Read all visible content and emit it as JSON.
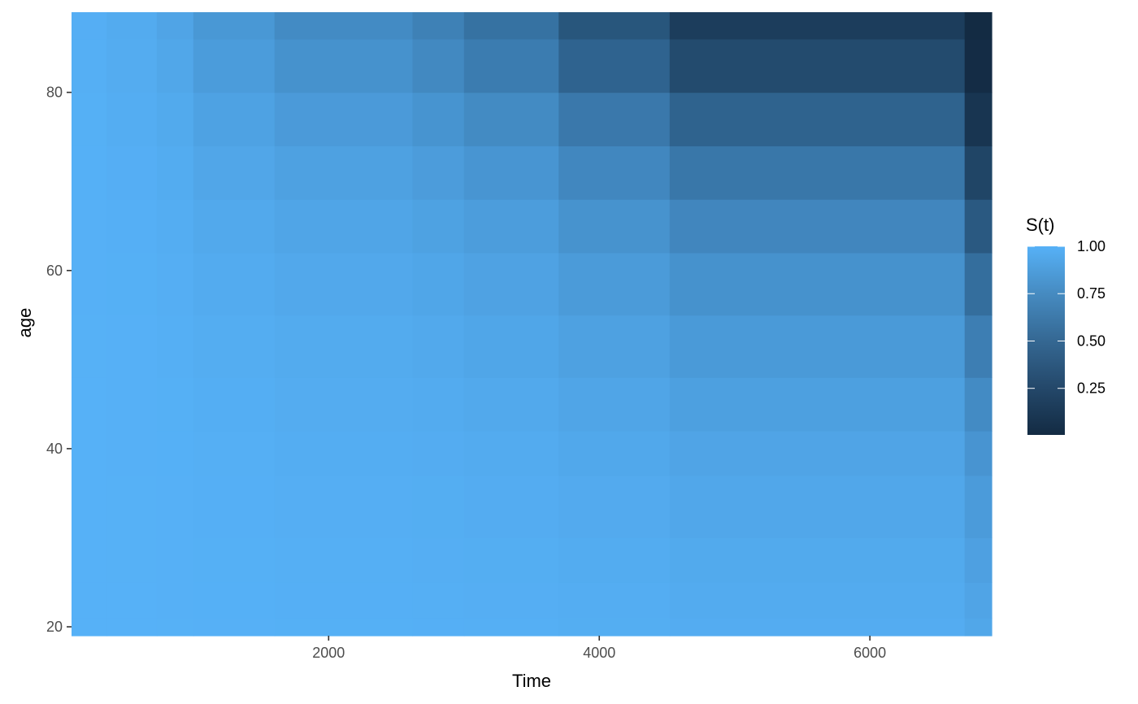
{
  "chart_data": {
    "type": "heatmap",
    "title": "",
    "xlabel": "Time",
    "ylabel": "age",
    "xlim": [
      100,
      6900
    ],
    "ylim": [
      19,
      89
    ],
    "x_ticks": [
      2000,
      4000,
      6000
    ],
    "y_ticks": [
      20,
      40,
      60,
      80
    ],
    "x_breaks": [
      100,
      360,
      730,
      1000,
      1600,
      2620,
      3000,
      3700,
      4520,
      6700,
      6900
    ],
    "y_breaks": [
      19,
      21,
      25,
      30,
      37,
      42,
      48,
      55,
      62,
      68,
      74,
      80,
      86,
      89
    ],
    "z_values": [
      [
        0.999,
        0.998,
        0.997,
        0.993,
        0.99,
        0.987,
        0.983,
        0.975,
        0.966,
        0.925
      ],
      [
        0.999,
        0.998,
        0.996,
        0.992,
        0.988,
        0.985,
        0.98,
        0.97,
        0.958,
        0.905
      ],
      [
        0.999,
        0.997,
        0.995,
        0.99,
        0.985,
        0.98,
        0.974,
        0.961,
        0.946,
        0.877
      ],
      [
        0.999,
        0.997,
        0.994,
        0.987,
        0.98,
        0.974,
        0.966,
        0.949,
        0.929,
        0.84
      ],
      [
        0.998,
        0.996,
        0.992,
        0.982,
        0.973,
        0.966,
        0.954,
        0.932,
        0.905,
        0.787
      ],
      [
        0.998,
        0.995,
        0.989,
        0.976,
        0.964,
        0.954,
        0.939,
        0.909,
        0.873,
        0.717
      ],
      [
        0.997,
        0.993,
        0.985,
        0.968,
        0.952,
        0.938,
        0.918,
        0.878,
        0.829,
        0.622
      ],
      [
        0.996,
        0.99,
        0.98,
        0.957,
        0.935,
        0.916,
        0.889,
        0.834,
        0.767,
        0.5
      ],
      [
        0.994,
        0.987,
        0.972,
        0.941,
        0.912,
        0.886,
        0.849,
        0.774,
        0.682,
        0.348
      ],
      [
        0.992,
        0.981,
        0.961,
        0.919,
        0.879,
        0.844,
        0.793,
        0.69,
        0.566,
        0.2
      ],
      [
        0.989,
        0.973,
        0.945,
        0.887,
        0.832,
        0.784,
        0.714,
        0.578,
        0.42,
        0.08
      ],
      [
        0.984,
        0.963,
        0.923,
        0.843,
        0.767,
        0.7,
        0.605,
        0.423,
        0.24,
        0.015
      ],
      [
        0.981,
        0.955,
        0.907,
        0.811,
        0.72,
        0.641,
        0.53,
        0.321,
        0.14,
        0.004
      ]
    ],
    "legend": {
      "title": "S(t)",
      "labels": [
        "1.00",
        "0.75",
        "0.50",
        "0.25"
      ],
      "values": [
        1.0,
        0.75,
        0.5,
        0.25
      ],
      "range": [
        0.004,
        1.0
      ],
      "placement": "right"
    },
    "colors": {
      "low": "#132B43",
      "high": "#56B1F7",
      "tick_text": "#4d4d4d",
      "tick_mark": "#333333"
    },
    "grid": false
  }
}
